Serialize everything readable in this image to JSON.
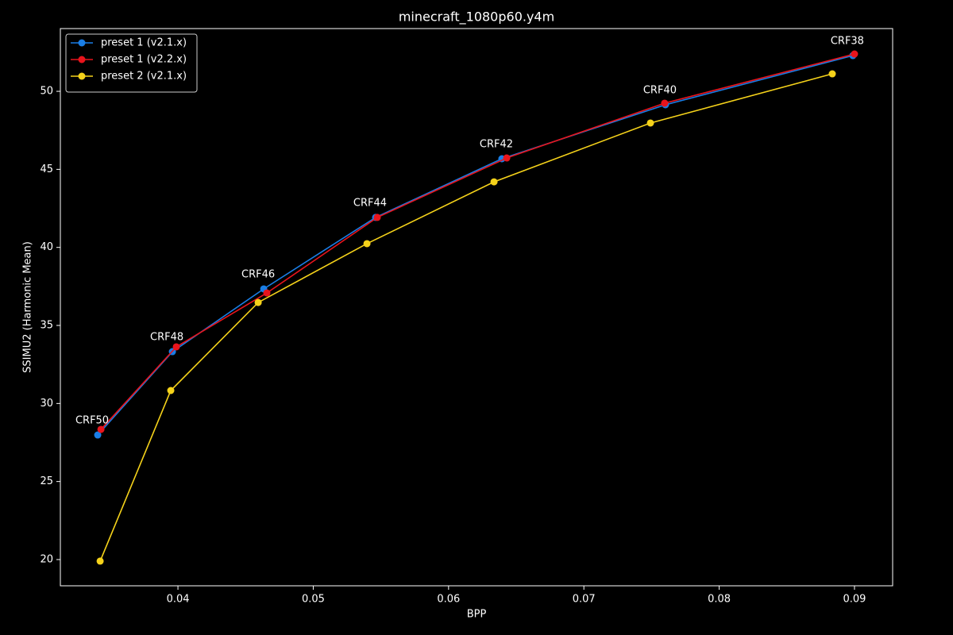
{
  "chart_data": {
    "type": "line",
    "title": "minecraft_1080p60.y4m",
    "x_label": "BPP",
    "y_label": "SSIMU2 (Harmonic Mean)",
    "xlim": [
      0.03131,
      0.09282
    ],
    "ylim": [
      18.32,
      54.02
    ],
    "xticks": [
      0.04,
      0.05,
      0.06,
      0.07,
      0.08,
      0.09
    ],
    "yticks": [
      20,
      25,
      30,
      35,
      40,
      45,
      50
    ],
    "legend": "upper left",
    "grid": false,
    "annotations": [
      "CRF50",
      "CRF48",
      "CRF46",
      "CRF44",
      "CRF42",
      "CRF40",
      "CRF38"
    ],
    "series": [
      {
        "name": "preset 1 (v2.1.x)",
        "color": "#1a7ee6",
        "x": [
          0.03407,
          0.03959,
          0.04634,
          0.05461,
          0.06394,
          0.07603,
          0.08988
        ],
        "values": [
          27.98,
          33.32,
          37.34,
          41.92,
          45.68,
          49.14,
          52.29
        ]
      },
      {
        "name": "preset 1 (v2.2.x)",
        "color": "#e8141c",
        "x": [
          0.03431,
          0.03988,
          0.04657,
          0.05473,
          0.0643,
          0.07597,
          0.09
        ],
        "values": [
          28.34,
          33.63,
          37.08,
          41.92,
          45.73,
          49.24,
          52.39
        ]
      },
      {
        "name": "preset 2 (v2.1.x)",
        "color": "#f5d21a",
        "x": [
          0.03425,
          0.03947,
          0.04593,
          0.05397,
          0.06336,
          0.07492,
          0.08836
        ],
        "values": [
          19.9,
          30.83,
          36.47,
          40.24,
          44.2,
          47.97,
          51.12
        ]
      }
    ]
  }
}
